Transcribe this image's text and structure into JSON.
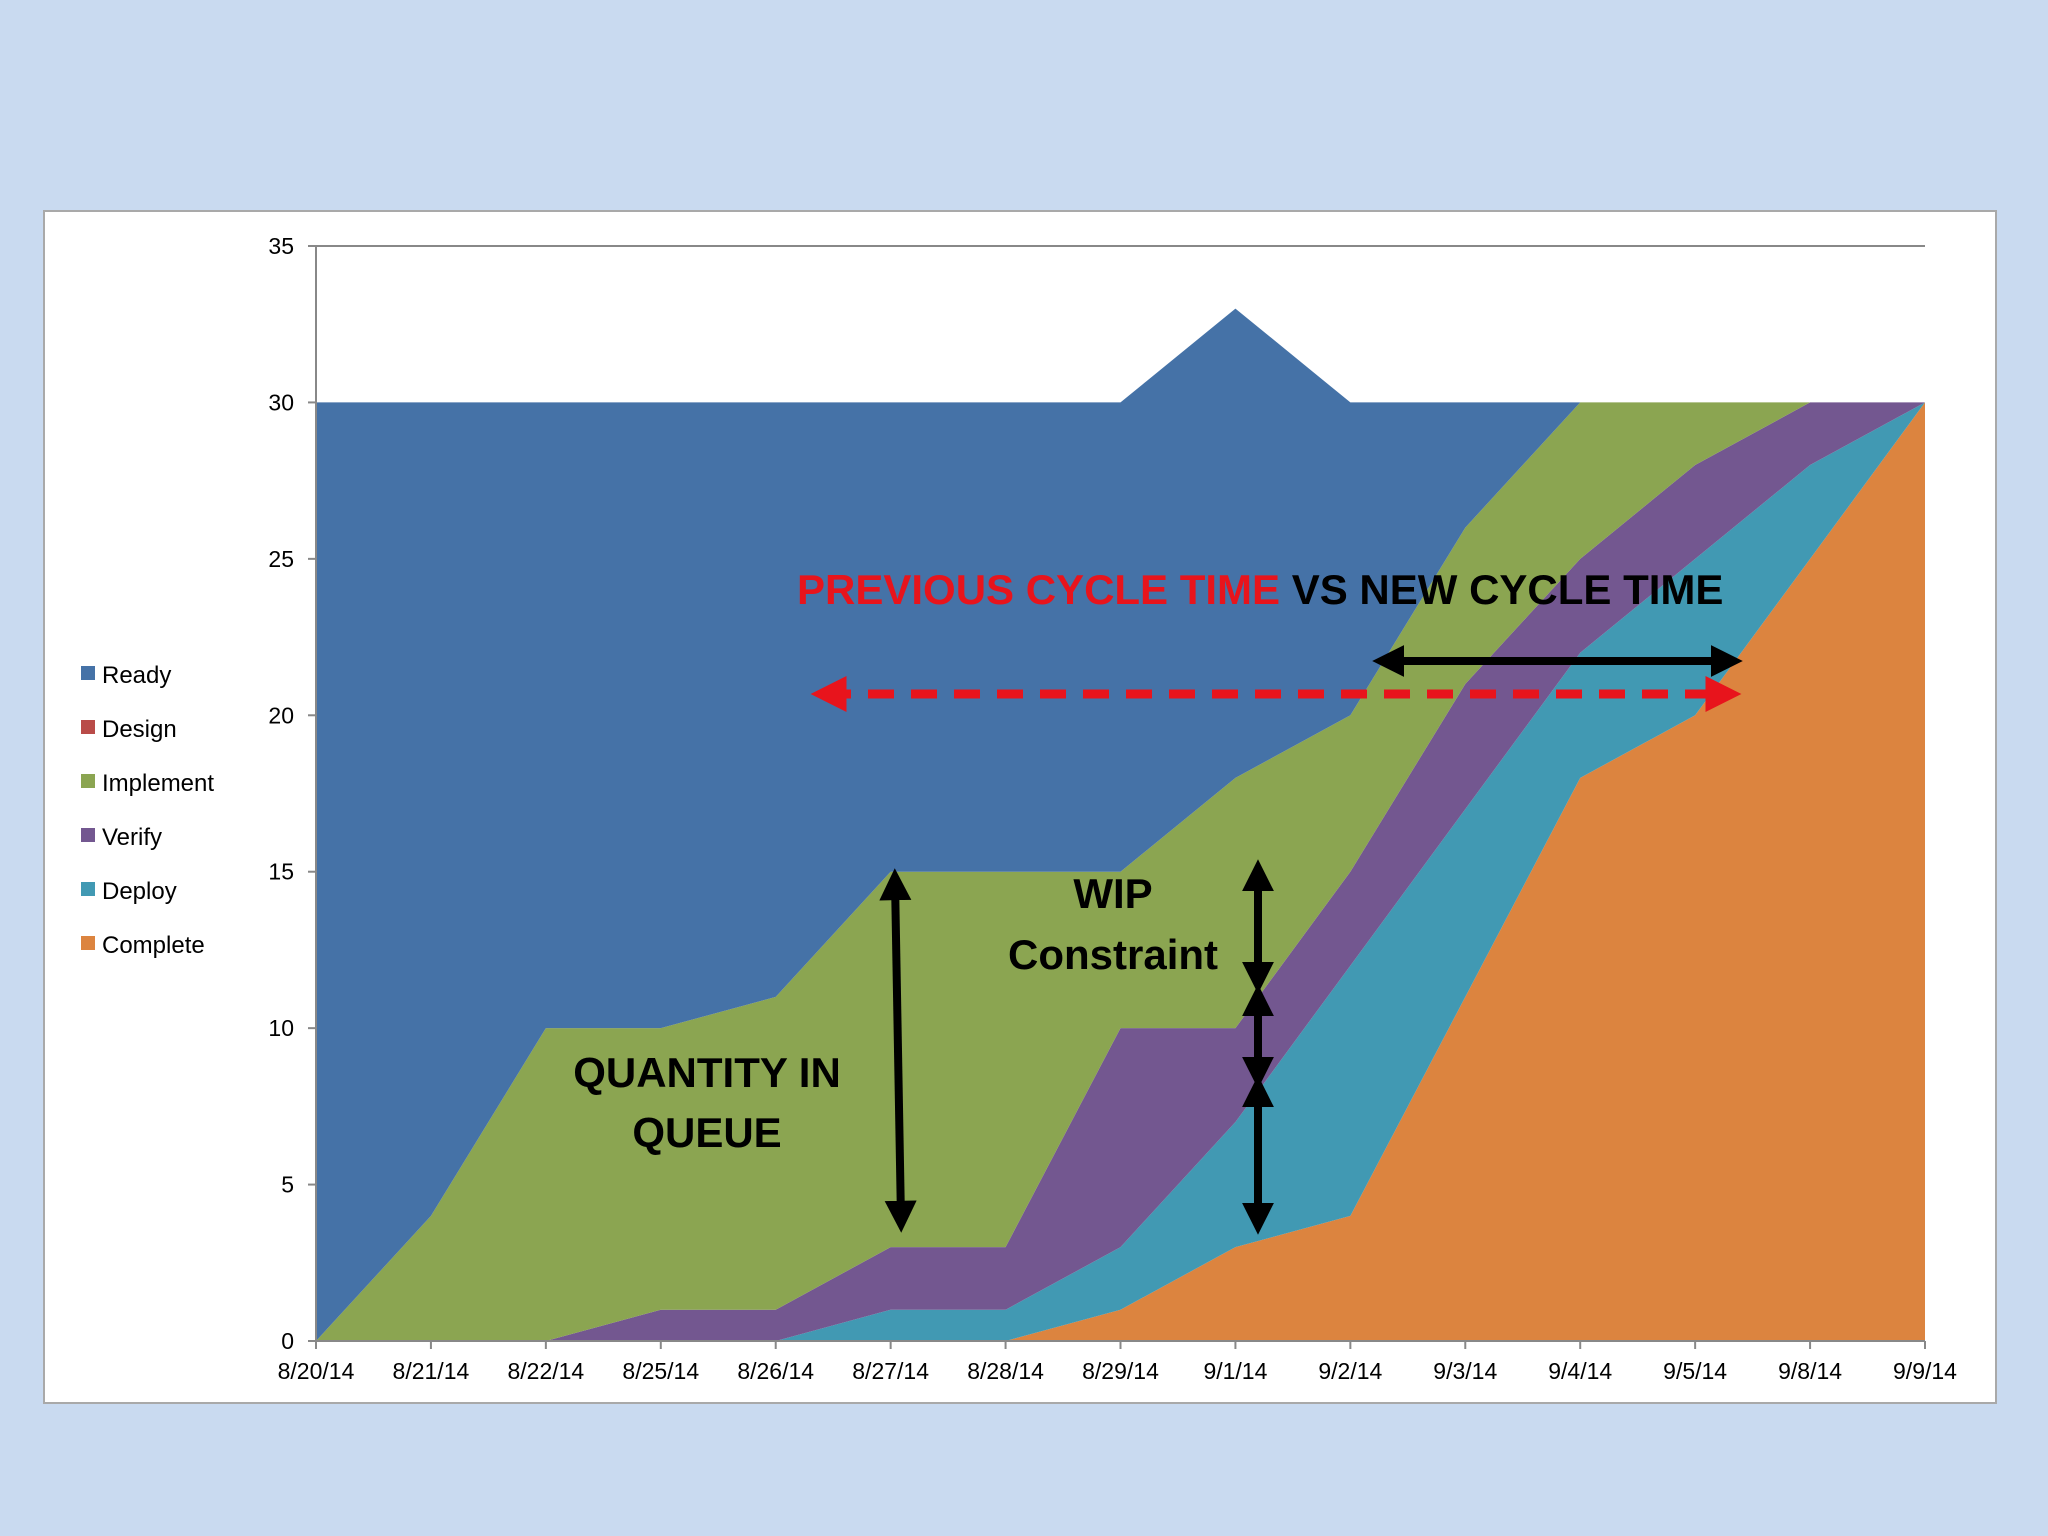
{
  "chart_data": {
    "type": "area",
    "stacked": true,
    "categories": [
      "8/20/14",
      "8/21/14",
      "8/22/14",
      "8/25/14",
      "8/26/14",
      "8/27/14",
      "8/28/14",
      "8/29/14",
      "9/1/14",
      "9/2/14",
      "9/3/14",
      "9/4/14",
      "9/5/14",
      "9/8/14",
      "9/9/14"
    ],
    "ylim": [
      0,
      35
    ],
    "yticks": [
      0,
      5,
      10,
      15,
      20,
      25,
      30,
      35
    ],
    "grid": false,
    "legend_position": "left",
    "series": [
      {
        "name": "Complete",
        "color": "#dc843f",
        "values": [
          0,
          0,
          0,
          0,
          0,
          0,
          0,
          1,
          3,
          4,
          11,
          18,
          20,
          25,
          30
        ]
      },
      {
        "name": "Deploy",
        "color": "#4199b3",
        "values": [
          0,
          0,
          0,
          0,
          0,
          1,
          1,
          2,
          4,
          8,
          6,
          4,
          5,
          3,
          0
        ]
      },
      {
        "name": "Verify",
        "color": "#735790",
        "values": [
          0,
          0,
          0,
          1,
          1,
          2,
          2,
          7,
          3,
          3,
          4,
          3,
          3,
          2,
          0
        ]
      },
      {
        "name": "Design",
        "color": "#b94b48",
        "values": [
          0,
          0,
          0,
          0,
          0,
          0,
          0,
          0,
          0,
          0,
          0,
          0,
          0,
          0,
          0
        ]
      },
      {
        "name": "Implement",
        "color": "#8ba551",
        "values": [
          0,
          4,
          10,
          9,
          10,
          12,
          12,
          5,
          8,
          5,
          5,
          5,
          2,
          0,
          0
        ]
      },
      {
        "name": "Ready",
        "color": "#4572a7",
        "values": [
          30,
          26,
          20,
          20,
          19,
          15,
          15,
          15,
          15,
          10,
          4,
          0,
          0,
          0,
          0
        ]
      }
    ],
    "legend": [
      "Ready",
      "Design",
      "Implement",
      "Verify",
      "Deploy",
      "Complete"
    ],
    "annotations": {
      "title_red": "PREVIOUS CYCLE TIME",
      "title_black": " VS NEW CYCLE TIME",
      "quantity_line1": "QUANTITY IN",
      "quantity_line2": "QUEUE",
      "wip_line1": "WIP",
      "wip_line2": "Constraint"
    }
  }
}
